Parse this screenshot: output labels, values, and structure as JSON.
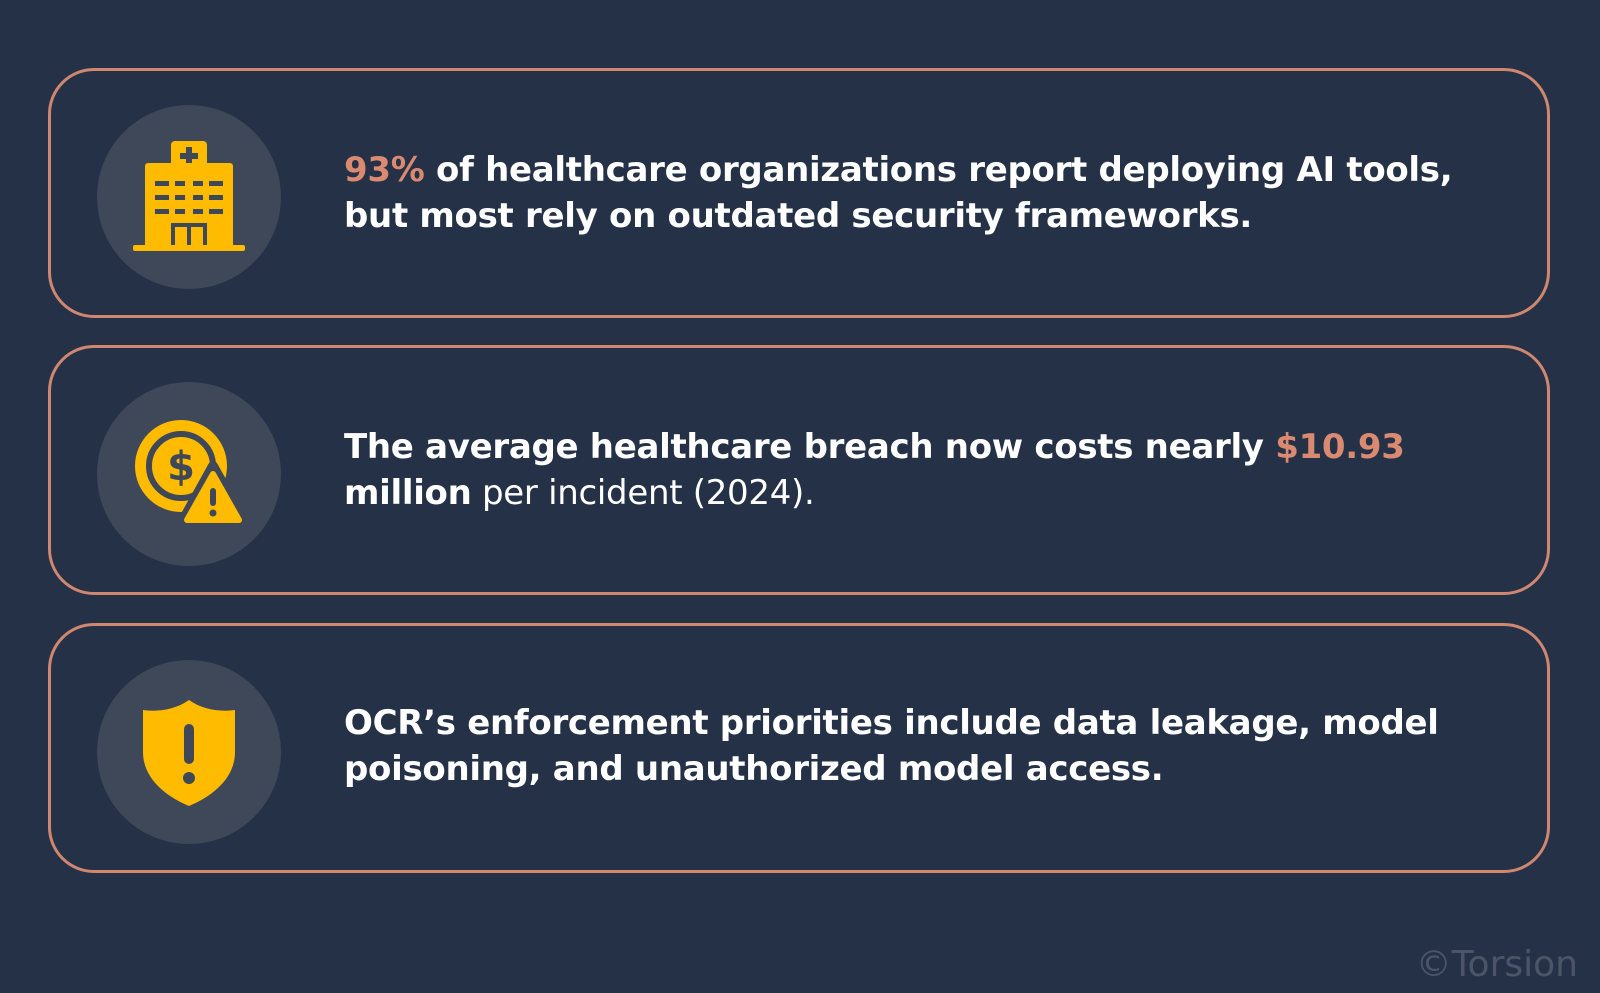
{
  "colors": {
    "background": "#243147",
    "card_border": "#cf8770",
    "icon_circle": "#3e4858",
    "icon_fill": "#ffbb00",
    "accent_text": "#d98a70",
    "text": "#ffffff",
    "watermark": "#4a5568"
  },
  "cards": [
    {
      "icon": "hospital-icon",
      "highlight": "93%",
      "text_after": " of healthcare organizations report deploying AI tools, but most rely on outdated security frameworks."
    },
    {
      "icon": "money-warning-icon",
      "text_before": "The average healthcare breach now costs nearly ",
      "highlight": "$10.93",
      "bold_continuation": " million",
      "text_after": " per incident (2024)."
    },
    {
      "icon": "shield-alert-icon",
      "text": "OCR’s enforcement priorities include data leakage, model poisoning, and unauthorized model access."
    }
  ],
  "watermark": "©Torsion"
}
